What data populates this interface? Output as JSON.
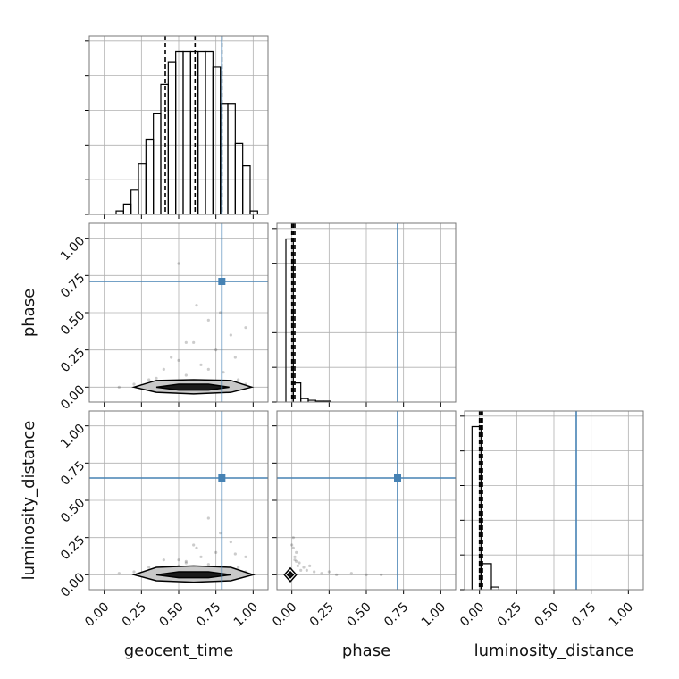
{
  "chart_data": [
    {
      "type": "histogram",
      "xlim": [
        -0.1,
        1.1
      ],
      "ylim": [
        0,
        1.03
      ],
      "xticks": [
        0,
        0.25,
        0.5,
        0.75,
        1
      ],
      "yticks": [
        0,
        0.2,
        0.4,
        0.6,
        0.8,
        1.0
      ],
      "grid": true,
      "bins": [
        0.08,
        0.13,
        0.18,
        0.23,
        0.28,
        0.33,
        0.38,
        0.43,
        0.48,
        0.53,
        0.58,
        0.63,
        0.68,
        0.73,
        0.78,
        0.83,
        0.88,
        0.93,
        0.98,
        1.03
      ],
      "values": [
        0.02,
        0.06,
        0.14,
        0.29,
        0.43,
        0.58,
        0.75,
        0.88,
        0.94,
        0.94,
        0.94,
        0.94,
        0.94,
        0.85,
        0.64,
        0.64,
        0.41,
        0.28,
        0.02
      ],
      "color": "#000000",
      "quantiles": [
        0.41,
        0.61,
        0.79
      ],
      "truth": 0.79,
      "truth_color": "#4682b4"
    },
    {
      "type": "scatter",
      "xlim": [
        -0.1,
        1.1
      ],
      "ylim": [
        -0.1,
        1.1
      ],
      "xticks": [
        0,
        0.25,
        0.5,
        0.75,
        1
      ],
      "yticks": [
        {
          "value": 0,
          "label": "0.00"
        },
        {
          "value": 0.25,
          "label": "0.25"
        },
        {
          "value": 0.5,
          "label": "0.50"
        },
        {
          "value": 0.75,
          "label": "0.75"
        },
        {
          "value": 1,
          "label": "1.00"
        }
      ],
      "grid": true,
      "ylabel": "phase",
      "x": [
        0.1,
        0.2,
        0.3,
        0.4,
        0.45,
        0.5,
        0.55,
        0.6,
        0.65,
        0.7,
        0.75,
        0.8,
        0.85,
        0.9,
        0.95,
        0.5,
        0.62,
        0.78,
        0.35,
        0.88,
        0.7,
        0.55,
        0.45,
        0.95,
        0.25
      ],
      "y": [
        0.0,
        0.02,
        0.05,
        0.12,
        0.2,
        0.83,
        0.08,
        0.3,
        0.15,
        0.45,
        0.25,
        0.1,
        0.35,
        0.05,
        0.02,
        0.18,
        0.55,
        0.5,
        0.06,
        0.2,
        0.12,
        0.3,
        0.04,
        0.4,
        0.01
      ],
      "color": "#000000",
      "contours": [
        {
          "x": [
            0.2,
            0.35,
            0.6,
            0.85,
            0.99,
            0.85,
            0.6,
            0.35,
            0.2
          ],
          "y": [
            0.0,
            0.045,
            0.05,
            0.045,
            0.0,
            -0.035,
            -0.045,
            -0.035,
            0.0
          ],
          "color": "#c8c8c8"
        },
        {
          "x": [
            0.35,
            0.5,
            0.7,
            0.84,
            0.7,
            0.5,
            0.35
          ],
          "y": [
            0.0,
            0.02,
            0.02,
            0.0,
            -0.02,
            -0.02,
            0.0
          ],
          "color": "#1a1a1a"
        }
      ],
      "truths": [
        0.79,
        0.71
      ],
      "truth_color": "#4682b4"
    },
    {
      "type": "histogram",
      "xlim": [
        -0.1,
        1.1
      ],
      "ylim": [
        0,
        1.03
      ],
      "xticks": [
        0,
        0.25,
        0.5,
        0.75,
        1
      ],
      "yticks": [
        0,
        0.2,
        0.4,
        0.6,
        0.8,
        1.0
      ],
      "grid": true,
      "bins": [
        -0.04,
        0.01,
        0.06,
        0.11,
        0.16,
        0.21,
        0.26
      ],
      "values": [
        0.94,
        0.11,
        0.02,
        0.01,
        0.005,
        0.005
      ],
      "color": "#000000",
      "quantiles": [
        0.0,
        0.01,
        0.02
      ],
      "truth": 0.71,
      "truth_color": "#4682b4"
    },
    {
      "type": "scatter",
      "xlim": [
        -0.1,
        1.1
      ],
      "ylim": [
        -0.1,
        1.1
      ],
      "xticks": [
        {
          "value": 0,
          "label": "0.00"
        },
        {
          "value": 0.25,
          "label": "0.25"
        },
        {
          "value": 0.5,
          "label": "0.50"
        },
        {
          "value": 0.75,
          "label": "0.75"
        },
        {
          "value": 1,
          "label": "1.00"
        }
      ],
      "yticks": [
        {
          "value": 0,
          "label": "0.00"
        },
        {
          "value": 0.25,
          "label": "0.25"
        },
        {
          "value": 0.5,
          "label": "0.50"
        },
        {
          "value": 0.75,
          "label": "0.75"
        },
        {
          "value": 1,
          "label": "1.00"
        }
      ],
      "grid": true,
      "xlabel": "geocent_time",
      "ylabel": "luminosity_distance",
      "x": [
        0.1,
        0.2,
        0.3,
        0.4,
        0.45,
        0.5,
        0.55,
        0.6,
        0.65,
        0.7,
        0.75,
        0.8,
        0.85,
        0.9,
        0.95,
        0.5,
        0.62,
        0.78,
        0.35,
        0.88,
        0.7,
        0.55,
        0.45,
        0.95,
        0.25
      ],
      "y": [
        0.01,
        0.02,
        0.05,
        0.1,
        0.03,
        0.06,
        0.08,
        0.2,
        0.12,
        0.38,
        0.15,
        0.04,
        0.22,
        0.05,
        0.02,
        0.1,
        0.18,
        0.28,
        0.03,
        0.14,
        0.07,
        0.09,
        0.02,
        0.12,
        0.0
      ],
      "color": "#000000",
      "contours": [
        {
          "x": [
            0.2,
            0.35,
            0.6,
            0.85,
            1.0,
            0.85,
            0.6,
            0.35,
            0.2
          ],
          "y": [
            0.0,
            0.05,
            0.06,
            0.05,
            0.0,
            -0.04,
            -0.05,
            -0.04,
            0.0
          ],
          "color": "#c8c8c8"
        },
        {
          "x": [
            0.35,
            0.5,
            0.7,
            0.85,
            0.7,
            0.5,
            0.35
          ],
          "y": [
            0.0,
            0.02,
            0.02,
            0.0,
            -0.02,
            -0.02,
            0.0
          ],
          "color": "#1a1a1a"
        }
      ],
      "truths": [
        0.79,
        0.65
      ],
      "truth_color": "#4682b4"
    },
    {
      "type": "scatter",
      "xlim": [
        -0.1,
        1.1
      ],
      "ylim": [
        -0.1,
        1.1
      ],
      "xticks": [
        {
          "value": 0,
          "label": "0.00"
        },
        {
          "value": 0.25,
          "label": "0.25"
        },
        {
          "value": 0.5,
          "label": "0.50"
        },
        {
          "value": 0.75,
          "label": "0.75"
        },
        {
          "value": 1,
          "label": "1.00"
        }
      ],
      "yticks": [
        0,
        0.25,
        0.5,
        0.75,
        1
      ],
      "grid": true,
      "xlabel": "phase",
      "x": [
        0,
        0.01,
        0.02,
        0.03,
        0.05,
        0.08,
        0.1,
        0.12,
        0.15,
        0.2,
        0.25,
        0.3,
        0.4,
        0.5,
        0.6,
        0.02,
        0.04,
        0.06,
        0.01,
        0.03
      ],
      "y": [
        0.2,
        0.25,
        0.1,
        0.15,
        0.08,
        0.05,
        0.03,
        0.06,
        0.02,
        0.01,
        0.02,
        0.0,
        0.01,
        0.0,
        0.0,
        0.12,
        0.06,
        0.03,
        0.18,
        0.09
      ],
      "color": "#000000",
      "contours": [
        {
          "x": [
            -0.05,
            -0.01,
            0.03,
            -0.01,
            -0.05
          ],
          "y": [
            0.0,
            0.045,
            0.0,
            -0.045,
            0.0
          ],
          "color": "#ffffff"
        },
        {
          "x": [
            -0.03,
            -0.01,
            0.01,
            -0.01,
            -0.03
          ],
          "y": [
            0.0,
            0.02,
            0.0,
            -0.02,
            0.0
          ],
          "color": "#1a1a1a"
        }
      ],
      "truths": [
        0.71,
        0.65
      ],
      "truth_color": "#4682b4"
    },
    {
      "type": "histogram",
      "xlim": [
        -0.1,
        1.1
      ],
      "ylim": [
        0,
        1.03
      ],
      "xticks": [
        {
          "value": 0,
          "label": "0.00"
        },
        {
          "value": 0.25,
          "label": "0.25"
        },
        {
          "value": 0.5,
          "label": "0.50"
        },
        {
          "value": 0.75,
          "label": "0.75"
        },
        {
          "value": 1,
          "label": "1.00"
        }
      ],
      "yticks": [
        0,
        0.2,
        0.4,
        0.6,
        0.8,
        1.0
      ],
      "grid": true,
      "xlabel": "luminosity_distance",
      "bins": [
        -0.05,
        0.01,
        0.08,
        0.13
      ],
      "values": [
        0.94,
        0.15,
        0.015
      ],
      "color": "#000000",
      "quantiles": [
        0.0,
        0.01,
        0.02
      ],
      "truth": 0.65,
      "truth_color": "#4682b4"
    }
  ]
}
